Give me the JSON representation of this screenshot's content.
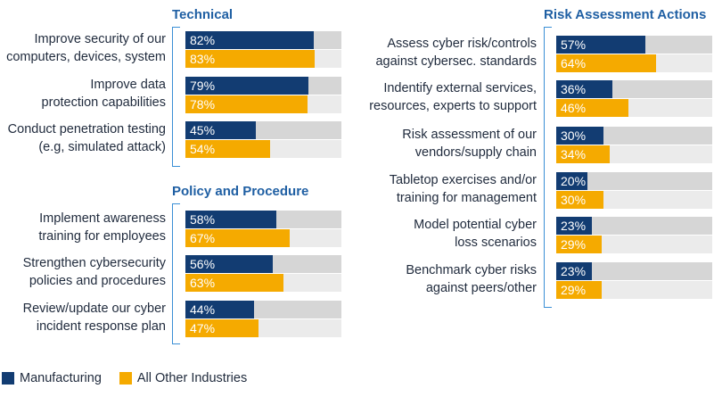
{
  "chart_data": {
    "type": "bar",
    "orientation": "horizontal",
    "xlim": [
      0,
      100
    ],
    "unit": "%",
    "series_names": [
      "Manufacturing",
      "All Other Industries"
    ],
    "colors": {
      "manufacturing": "#123c72",
      "other": "#f5aa00",
      "track_m": "#d6d6d6",
      "track_o": "#ebebeb"
    },
    "groups": [
      {
        "title": "Technical",
        "rows": [
          {
            "label": [
              "Improve security of our",
              "computers, devices, system"
            ],
            "values": [
              82,
              83
            ]
          },
          {
            "label": [
              "Improve data",
              "protection capabilities"
            ],
            "values": [
              79,
              78
            ]
          },
          {
            "label": [
              "Conduct penetration testing",
              "(e.g, simulated attack)"
            ],
            "values": [
              45,
              54
            ]
          }
        ]
      },
      {
        "title": "Policy and Procedure",
        "rows": [
          {
            "label": [
              "Implement awareness",
              "training for employees"
            ],
            "values": [
              58,
              67
            ]
          },
          {
            "label": [
              "Strengthen cybersecurity",
              "policies and procedures"
            ],
            "values": [
              56,
              63
            ]
          },
          {
            "label": [
              "Review/update our cyber",
              "incident response plan"
            ],
            "values": [
              44,
              47
            ]
          }
        ]
      },
      {
        "title": "Risk Assessment Actions",
        "rows": [
          {
            "label": [
              "Assess cyber risk/controls",
              "against cybersec. standards"
            ],
            "values": [
              57,
              64
            ]
          },
          {
            "label": [
              "Indentify external services,",
              "resources, experts to support"
            ],
            "values": [
              36,
              46
            ]
          },
          {
            "label": [
              "Risk assessment of our",
              "vendors/supply chain"
            ],
            "values": [
              30,
              34
            ]
          },
          {
            "label": [
              "Tabletop exercises and/or",
              "training for management"
            ],
            "values": [
              20,
              30
            ]
          },
          {
            "label": [
              "Model potential cyber",
              "loss scenarios"
            ],
            "values": [
              23,
              29
            ]
          },
          {
            "label": [
              "Benchmark cyber risks",
              "against peers/other"
            ],
            "values": [
              23,
              29
            ]
          }
        ]
      }
    ],
    "legend": {
      "position": "bottom-left",
      "entries": [
        "Manufacturing",
        "All Other Industries"
      ]
    }
  }
}
